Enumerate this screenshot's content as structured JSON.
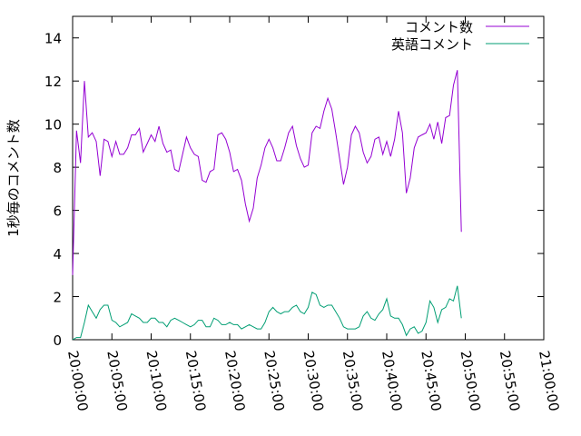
{
  "chart_data": {
    "type": "line",
    "title": "",
    "xlabel": "",
    "ylabel": "1秒毎のコメント数",
    "ylim": [
      0,
      15
    ],
    "yticks": [
      "0",
      "2",
      "4",
      "6",
      "8",
      "10",
      "12",
      "14"
    ],
    "xlim": [
      "20:00:00",
      "21:00:00"
    ],
    "xticks": [
      "20:00:00",
      "20:05:00",
      "20:10:00",
      "20:15:00",
      "20:20:00",
      "20:25:00",
      "20:30:00",
      "20:35:00",
      "20:40:00",
      "20:45:00",
      "20:50:00",
      "20:55:00",
      "21:00:00"
    ],
    "grid": false,
    "legend_position": "top-right",
    "x_step_seconds": 30,
    "x_start": "20:00:00",
    "series": [
      {
        "name": "コメント数",
        "color": "#9400d3",
        "values": [
          3.0,
          9.7,
          8.2,
          12.0,
          9.4,
          9.6,
          9.2,
          7.6,
          9.3,
          9.2,
          8.5,
          9.2,
          8.6,
          8.6,
          8.9,
          9.5,
          9.5,
          9.8,
          8.7,
          9.1,
          9.5,
          9.2,
          9.9,
          9.1,
          8.7,
          8.8,
          7.9,
          7.8,
          8.6,
          9.4,
          8.9,
          8.6,
          8.5,
          7.4,
          7.3,
          7.8,
          7.9,
          9.5,
          9.6,
          9.3,
          8.7,
          7.8,
          7.9,
          7.4,
          6.3,
          5.5,
          6.1,
          7.5,
          8.1,
          8.9,
          9.3,
          8.9,
          8.3,
          8.3,
          8.9,
          9.6,
          9.9,
          9.0,
          8.4,
          8.0,
          8.1,
          9.6,
          9.9,
          9.8,
          10.6,
          11.2,
          10.7,
          9.6,
          8.4,
          7.2,
          8.0,
          9.5,
          9.9,
          9.6,
          8.7,
          8.2,
          8.5,
          9.3,
          9.4,
          8.6,
          9.2,
          8.5,
          9.3,
          10.6,
          9.6,
          6.8,
          7.5,
          8.9,
          9.4,
          9.5,
          9.6,
          10.0,
          9.3,
          10.1,
          9.1,
          10.3,
          10.4,
          11.8,
          12.5,
          5.0
        ]
      },
      {
        "name": "英語コメント",
        "color": "#009e73",
        "values": [
          0.0,
          0.1,
          0.1,
          0.8,
          1.6,
          1.3,
          1.0,
          1.4,
          1.6,
          1.6,
          0.9,
          0.8,
          0.6,
          0.7,
          0.8,
          1.2,
          1.1,
          1.0,
          0.8,
          0.8,
          1.0,
          1.0,
          0.8,
          0.8,
          0.6,
          0.9,
          1.0,
          0.9,
          0.8,
          0.7,
          0.6,
          0.7,
          0.9,
          0.9,
          0.6,
          0.6,
          1.0,
          0.9,
          0.7,
          0.7,
          0.8,
          0.7,
          0.7,
          0.5,
          0.6,
          0.7,
          0.6,
          0.5,
          0.5,
          0.8,
          1.3,
          1.5,
          1.3,
          1.2,
          1.3,
          1.3,
          1.5,
          1.6,
          1.3,
          1.2,
          1.5,
          2.2,
          2.1,
          1.6,
          1.5,
          1.6,
          1.6,
          1.3,
          1.0,
          0.6,
          0.5,
          0.5,
          0.5,
          0.6,
          1.1,
          1.3,
          1.0,
          0.9,
          1.2,
          1.4,
          1.9,
          1.1,
          1.0,
          1.0,
          0.7,
          0.2,
          0.5,
          0.6,
          0.3,
          0.4,
          0.8,
          1.8,
          1.5,
          0.8,
          1.4,
          1.5,
          1.9,
          1.8,
          2.5,
          1.0
        ]
      }
    ]
  }
}
